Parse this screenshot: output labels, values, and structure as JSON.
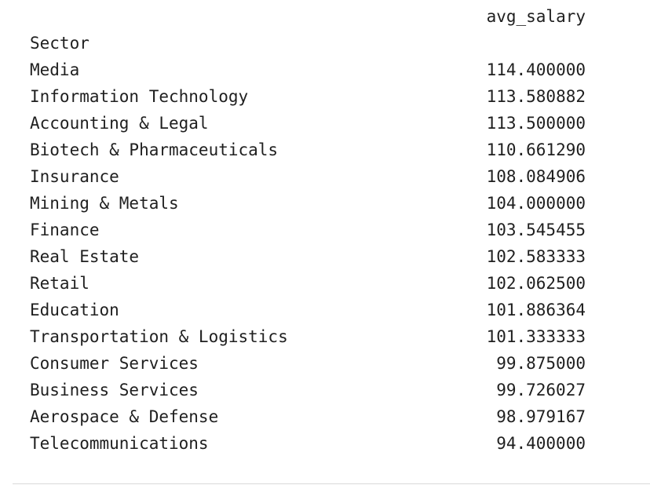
{
  "output": {
    "column_header": "avg_salary",
    "index_name": "Sector",
    "rows": [
      {
        "sector": "Media",
        "avg_salary": "114.400000"
      },
      {
        "sector": "Information Technology",
        "avg_salary": "113.580882"
      },
      {
        "sector": "Accounting & Legal",
        "avg_salary": "113.500000"
      },
      {
        "sector": "Biotech & Pharmaceuticals",
        "avg_salary": "110.661290"
      },
      {
        "sector": "Insurance",
        "avg_salary": "108.084906"
      },
      {
        "sector": "Mining & Metals",
        "avg_salary": "104.000000"
      },
      {
        "sector": "Finance",
        "avg_salary": "103.545455"
      },
      {
        "sector": "Real Estate",
        "avg_salary": "102.583333"
      },
      {
        "sector": "Retail",
        "avg_salary": "102.062500"
      },
      {
        "sector": "Education",
        "avg_salary": "101.886364"
      },
      {
        "sector": "Transportation & Logistics",
        "avg_salary": "101.333333"
      },
      {
        "sector": "Consumer Services",
        "avg_salary": "99.875000"
      },
      {
        "sector": "Business Services",
        "avg_salary": "99.726027"
      },
      {
        "sector": "Aerospace & Defense",
        "avg_salary": "98.979167"
      },
      {
        "sector": "Telecommunications",
        "avg_salary": "94.400000"
      }
    ]
  },
  "colors": {
    "text": "#1f1f1f",
    "background": "#ffffff",
    "divider": "#d9d9d9"
  }
}
